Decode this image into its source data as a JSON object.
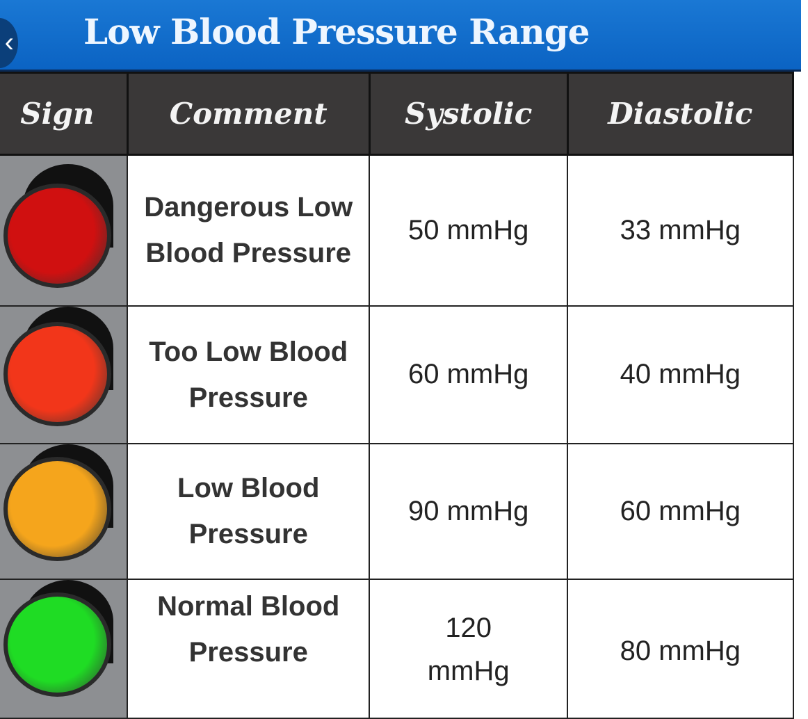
{
  "title": "Low Blood Pressure Range",
  "back_icon": "chevron-left-icon",
  "columns": [
    "Sign",
    "Comment",
    "Systolic",
    "Diastolic"
  ],
  "rows": [
    {
      "signal_color": "#d01010",
      "comment": "Dangerous Low Blood Pressure",
      "systolic": "50 mmHg",
      "diastolic": "33 mmHg"
    },
    {
      "signal_color": "#f2361a",
      "comment": "Too Low Blood Pressure",
      "systolic": "60 mmHg",
      "diastolic": "40 mmHg"
    },
    {
      "signal_color": "#f5a51c",
      "comment": "Low Blood Pressure",
      "systolic": "90 mmHg",
      "diastolic": "60 mmHg"
    },
    {
      "signal_color": "#1fdc24",
      "comment": "Normal Blood Pressure",
      "systolic": "120 mmHg",
      "diastolic": "80 mmHg"
    }
  ]
}
